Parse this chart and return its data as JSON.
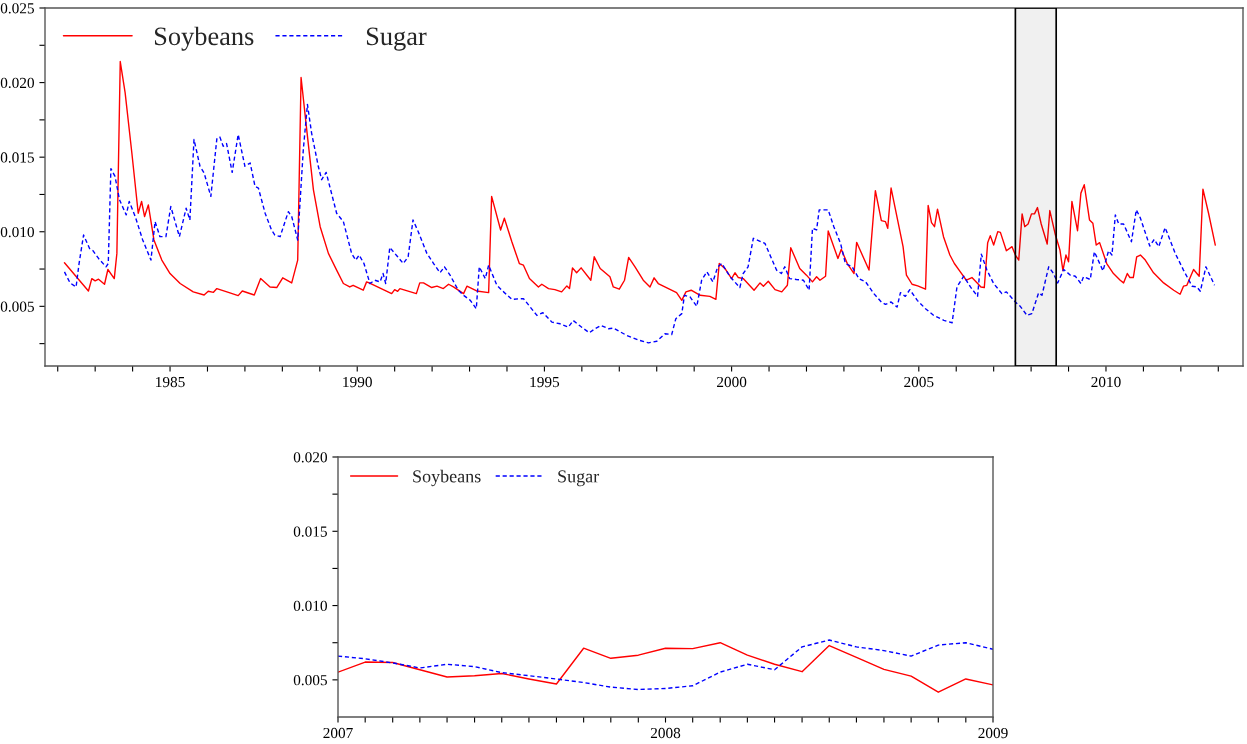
{
  "chart_data": [
    {
      "type": "line",
      "xlim": [
        1981.66,
        2013.66
      ],
      "ylim": [
        0.001,
        0.025
      ],
      "legend": "top left",
      "xticks": [
        {
          "value": 1982,
          "label": null
        },
        {
          "value": 1983,
          "label": null
        },
        {
          "value": 1984,
          "label": null
        },
        1985,
        {
          "value": 1986,
          "label": null
        },
        {
          "value": 1987,
          "label": null
        },
        {
          "value": 1988,
          "label": null
        },
        {
          "value": 1989,
          "label": null
        },
        1990,
        {
          "value": 1991,
          "label": null
        },
        {
          "value": 1992,
          "label": null
        },
        {
          "value": 1993,
          "label": null
        },
        {
          "value": 1994,
          "label": null
        },
        1995,
        {
          "value": 1996,
          "label": null
        },
        {
          "value": 1997,
          "label": null
        },
        {
          "value": 1998,
          "label": null
        },
        {
          "value": 1999,
          "label": null
        },
        2000,
        {
          "value": 2001,
          "label": null
        },
        {
          "value": 2002,
          "label": null
        },
        {
          "value": 2003,
          "label": null
        },
        {
          "value": 2004,
          "label": null
        },
        2005,
        {
          "value": 2006,
          "label": null
        },
        {
          "value": 2007,
          "label": null
        },
        {
          "value": 2008,
          "label": null
        },
        {
          "value": 2009,
          "label": null
        },
        2010,
        {
          "value": 2011,
          "label": null
        },
        {
          "value": 2012,
          "label": null
        },
        {
          "value": 2013,
          "label": null
        }
      ],
      "yticks": [
        {
          "value": 0.0025,
          "label": null
        },
        0.005,
        {
          "value": 0.0075,
          "label": null
        },
        {
          "value": 0.01,
          "label": "0.010"
        },
        {
          "value": 0.0125,
          "label": null
        },
        0.015,
        {
          "value": 0.0175,
          "label": null
        },
        {
          "value": 0.02,
          "label": "0.020"
        },
        {
          "value": 0.0225,
          "label": null
        },
        0.025
      ],
      "bands": [
        {
          "axis": "x",
          "from": 2007.58,
          "to": 2008.67,
          "color": "#000000"
        }
      ],
      "series": [
        {
          "name": "Soybeans",
          "color": "#ff0000",
          "line_style": "solid",
          "x": [
            1982.18,
            1982.82,
            1982.91,
            1983.0,
            1983.09,
            1983.25,
            1983.34,
            1983.51,
            1983.58,
            1983.67,
            1983.8,
            1983.98,
            1984.15,
            1984.24,
            1984.32,
            1984.42,
            1984.57,
            1984.78,
            1985.0,
            1985.27,
            1985.62,
            1985.91,
            1986.02,
            1986.16,
            1986.25,
            1986.6,
            1986.82,
            1986.93,
            1987.25,
            1987.42,
            1987.67,
            1987.85,
            1988.01,
            1988.25,
            1988.41,
            1988.5,
            1988.65,
            1988.83,
            1989.01,
            1989.23,
            1989.45,
            1989.63,
            1989.8,
            1989.89,
            1990.16,
            1990.25,
            1990.36,
            1990.92,
            1991.0,
            1991.08,
            1991.14,
            1991.58,
            1991.67,
            1991.77,
            1991.99,
            1992.13,
            1992.3,
            1992.44,
            1992.57,
            1992.84,
            1992.93,
            1993.19,
            1993.51,
            1993.59,
            1993.83,
            1993.93,
            1994.13,
            1994.33,
            1994.44,
            1994.6,
            1994.84,
            1994.93,
            1995.11,
            1995.28,
            1995.46,
            1995.6,
            1995.67,
            1995.75,
            1995.86,
            1995.98,
            1996.24,
            1996.33,
            1996.49,
            1996.75,
            1996.84,
            1997.0,
            1997.14,
            1997.25,
            1997.42,
            1997.64,
            1997.82,
            1997.93,
            1998.04,
            1998.53,
            1998.67,
            1998.78,
            1998.92,
            1999.16,
            1999.42,
            1999.58,
            1999.67,
            1999.82,
            2000.0,
            2000.09,
            2000.18,
            2000.31,
            2000.6,
            2000.76,
            2000.85,
            2000.98,
            2001.16,
            2001.34,
            2001.49,
            2001.58,
            2001.82,
            2002.0,
            2002.16,
            2002.27,
            2002.36,
            2002.51,
            2002.58,
            2002.84,
            2002.93,
            2003.09,
            2003.27,
            2003.34,
            2003.67,
            2003.84,
            2004.0,
            2004.11,
            2004.17,
            2004.26,
            2004.58,
            2004.67,
            2004.82,
            2004.97,
            2005.18,
            2005.25,
            2005.34,
            2005.42,
            2005.5,
            2005.66,
            2005.83,
            2005.95,
            2006.11,
            2006.27,
            2006.42,
            2006.56,
            2006.66,
            2006.75,
            2006.84,
            2006.91,
            2007.0,
            2007.11,
            2007.18,
            2007.34,
            2007.49,
            2007.58,
            2007.67,
            2007.76,
            2007.83,
            2007.92,
            2008.01,
            2008.09,
            2008.17,
            2008.27,
            2008.43,
            2008.5,
            2008.65,
            2008.77,
            2008.85,
            2008.93,
            2009.0,
            2009.09,
            2009.24,
            2009.33,
            2009.42,
            2009.56,
            2009.65,
            2009.74,
            2009.83,
            2010.02,
            2010.2,
            2010.38,
            2010.47,
            2010.57,
            2010.64,
            2010.73,
            2010.82,
            2010.92,
            2011.05,
            2011.27,
            2011.54,
            2011.81,
            2011.98,
            2012.07,
            2012.16,
            2012.34,
            2012.49,
            2012.59,
            2012.74,
            2012.92
          ],
          "values": [
            0.00792,
            0.00603,
            0.00686,
            0.00671,
            0.00682,
            0.00648,
            0.00747,
            0.00686,
            0.00855,
            0.02141,
            0.01933,
            0.01528,
            0.01124,
            0.01203,
            0.01102,
            0.0118,
            0.00945,
            0.0081,
            0.0072,
            0.00653,
            0.00597,
            0.00576,
            0.00601,
            0.00594,
            0.00619,
            0.0059,
            0.00572,
            0.00603,
            0.00576,
            0.00686,
            0.0063,
            0.00626,
            0.00691,
            0.00657,
            0.0081,
            0.02034,
            0.01686,
            0.01281,
            0.01034,
            0.00855,
            0.00743,
            0.00653,
            0.0063,
            0.00641,
            0.00608,
            0.00664,
            0.00653,
            0.00585,
            0.00612,
            0.00601,
            0.00619,
            0.00585,
            0.00657,
            0.00657,
            0.00626,
            0.00635,
            0.00619,
            0.00648,
            0.0063,
            0.00585,
            0.00635,
            0.00603,
            0.00592,
            0.01237,
            0.01012,
            0.01091,
            0.00933,
            0.00787,
            0.00776,
            0.00686,
            0.0063,
            0.00648,
            0.00619,
            0.00612,
            0.00597,
            0.00637,
            0.00619,
            0.00758,
            0.00725,
            0.00758,
            0.00675,
            0.00832,
            0.00754,
            0.00698,
            0.0063,
            0.00615,
            0.00675,
            0.00828,
            0.00765,
            0.00675,
            0.0063,
            0.00691,
            0.00653,
            0.00592,
            0.0054,
            0.00597,
            0.00608,
            0.00574,
            0.00567,
            0.00547,
            0.00787,
            0.00754,
            0.00686,
            0.00725,
            0.00693,
            0.00686,
            0.00608,
            0.00657,
            0.00635,
            0.00668,
            0.00612,
            0.00597,
            0.00641,
            0.00893,
            0.00754,
            0.00709,
            0.00664,
            0.00698,
            0.00675,
            0.00702,
            0.01005,
            0.00821,
            0.00882,
            0.00787,
            0.0072,
            0.00929,
            0.00743,
            0.01275,
            0.01075,
            0.01068,
            0.01023,
            0.01293,
            0.009,
            0.00709,
            0.00648,
            0.00637,
            0.00615,
            0.01176,
            0.01061,
            0.01034,
            0.01151,
            0.00967,
            0.00844,
            0.00787,
            0.00731,
            0.00675,
            0.00693,
            0.00657,
            0.0063,
            0.00626,
            0.00927,
            0.00974,
            0.00911,
            0.01001,
            0.00996,
            0.00873,
            0.009,
            0.00844,
            0.0081,
            0.0112,
            0.01034,
            0.01052,
            0.0112,
            0.0112,
            0.01162,
            0.01052,
            0.00918,
            0.01142,
            0.00978,
            0.00878,
            0.0074,
            0.00844,
            0.00799,
            0.01203,
            0.01007,
            0.01259,
            0.01315,
            0.01079,
            0.01057,
            0.00911,
            0.00927,
            0.00787,
            0.0072,
            0.00675,
            0.00657,
            0.0072,
            0.00693,
            0.00693,
            0.00832,
            0.00844,
            0.0081,
            0.00725,
            0.00657,
            0.00608,
            0.00581,
            0.00635,
            0.00641,
            0.00747,
            0.00702,
            0.01286,
            0.01124,
            0.00911
          ]
        },
        {
          "name": "Sugar",
          "color": "#0000ff",
          "line_style": "dashed",
          "x": [
            1982.18,
            1982.33,
            1982.49,
            1982.57,
            1982.69,
            1982.85,
            1982.94,
            1983.09,
            1983.29,
            1983.35,
            1983.42,
            1983.53,
            1983.65,
            1983.83,
            1983.91,
            1984.07,
            1984.27,
            1984.49,
            1984.6,
            1984.73,
            1984.89,
            1985.02,
            1985.25,
            1985.43,
            1985.53,
            1985.64,
            1985.8,
            1985.91,
            1986.09,
            1986.25,
            1986.33,
            1986.42,
            1986.51,
            1986.66,
            1986.82,
            1987.0,
            1987.14,
            1987.27,
            1987.36,
            1987.54,
            1987.71,
            1987.8,
            1987.94,
            1988.16,
            1988.25,
            1988.41,
            1988.56,
            1988.67,
            1988.78,
            1988.96,
            1989.05,
            1989.17,
            1989.45,
            1989.63,
            1989.85,
            1989.96,
            1990.05,
            1990.18,
            1990.34,
            1990.47,
            1990.61,
            1990.69,
            1990.76,
            1990.87,
            1991.08,
            1991.23,
            1991.36,
            1991.49,
            1991.63,
            1991.86,
            1992.04,
            1992.21,
            1992.33,
            1992.48,
            1992.7,
            1992.84,
            1993.02,
            1993.18,
            1993.26,
            1993.42,
            1993.51,
            1993.73,
            1993.91,
            1994.13,
            1994.44,
            1994.8,
            1994.96,
            1995.2,
            1995.42,
            1995.64,
            1995.77,
            1995.99,
            1996.2,
            1996.35,
            1996.51,
            1996.71,
            1996.84,
            1997.2,
            1997.55,
            1997.78,
            1998.0,
            1998.22,
            1998.4,
            1998.51,
            1998.67,
            1998.74,
            1998.89,
            1999.07,
            1999.2,
            1999.34,
            1999.5,
            1999.63,
            1999.74,
            1999.96,
            2000.22,
            2000.31,
            2000.44,
            2000.58,
            2000.89,
            2001.2,
            2001.33,
            2001.42,
            2001.55,
            2001.73,
            2001.92,
            2002.07,
            2002.16,
            2002.27,
            2002.34,
            2002.58,
            2002.73,
            2002.91,
            2003.04,
            2003.22,
            2003.4,
            2003.58,
            2003.8,
            2004.0,
            2004.11,
            2004.26,
            2004.42,
            2004.51,
            2004.64,
            2004.76,
            2004.96,
            2005.18,
            2005.4,
            2005.67,
            2005.89,
            2006.02,
            2006.2,
            2006.38,
            2006.57,
            2006.67,
            2006.82,
            2007.0,
            2007.22,
            2007.34,
            2007.58,
            2007.71,
            2007.89,
            2008.02,
            2008.2,
            2008.29,
            2008.47,
            2008.6,
            2008.71,
            2008.87,
            2009.05,
            2009.18,
            2009.33,
            2009.4,
            2009.58,
            2009.69,
            2009.92,
            2010.07,
            2010.16,
            2010.25,
            2010.34,
            2010.47,
            2010.68,
            2010.81,
            2010.92,
            2011.17,
            2011.29,
            2011.41,
            2011.58,
            2011.85,
            2012.07,
            2012.3,
            2012.43,
            2012.52,
            2012.67,
            2012.9
          ],
          "values": [
            0.00731,
            0.00657,
            0.0063,
            0.00787,
            0.00978,
            0.00888,
            0.00873,
            0.00821,
            0.00765,
            0.00787,
            0.01423,
            0.01371,
            0.01214,
            0.01113,
            0.01203,
            0.01102,
            0.00945,
            0.0081,
            0.01068,
            0.00967,
            0.00967,
            0.01169,
            0.00967,
            0.01158,
            0.01079,
            0.01618,
            0.01439,
            0.01394,
            0.01237,
            0.01623,
            0.01636,
            0.01573,
            0.01591,
            0.01398,
            0.01652,
            0.01439,
            0.01461,
            0.01304,
            0.01293,
            0.01124,
            0.01012,
            0.00978,
            0.00967,
            0.01135,
            0.01102,
            0.00945,
            0.01551,
            0.01854,
            0.01663,
            0.01439,
            0.01349,
            0.01398,
            0.01124,
            0.01068,
            0.00855,
            0.0081,
            0.00844,
            0.00787,
            0.00653,
            0.00675,
            0.00664,
            0.0072,
            0.00653,
            0.00895,
            0.00832,
            0.00787,
            0.00832,
            0.01079,
            0.01,
            0.00855,
            0.00787,
            0.00725,
            0.00765,
            0.00709,
            0.00608,
            0.00574,
            0.0054,
            0.00484,
            0.00765,
            0.00686,
            0.00776,
            0.00641,
            0.00597,
            0.00547,
            0.00552,
            0.00439,
            0.00457,
            0.00394,
            0.00383,
            0.00361,
            0.00405,
            0.00361,
            0.00323,
            0.0035,
            0.00372,
            0.0035,
            0.00354,
            0.00305,
            0.00271,
            0.00255,
            0.00266,
            0.00316,
            0.00311,
            0.00417,
            0.00451,
            0.00574,
            0.00563,
            0.005,
            0.00675,
            0.00731,
            0.00664,
            0.00765,
            0.00787,
            0.00698,
            0.00626,
            0.0072,
            0.00765,
            0.00956,
            0.00922,
            0.00743,
            0.0072,
            0.00765,
            0.00686,
            0.0068,
            0.00675,
            0.00608,
            0.01023,
            0.01012,
            0.01147,
            0.01147,
            0.01034,
            0.00922,
            0.00787,
            0.00765,
            0.00686,
            0.00664,
            0.00585,
            0.00529,
            0.00513,
            0.00529,
            0.00495,
            0.00592,
            0.00567,
            0.00612,
            0.0054,
            0.00484,
            0.00439,
            0.00406,
            0.0039,
            0.0063,
            0.00702,
            0.0063,
            0.00567,
            0.0085,
            0.00743,
            0.00653,
            0.00585,
            0.00597,
            0.00529,
            0.005,
            0.00439,
            0.00451,
            0.0059,
            0.00574,
            0.00765,
            0.0072,
            0.00657,
            0.00747,
            0.00709,
            0.00702,
            0.00653,
            0.00698,
            0.0068,
            0.00866,
            0.00738,
            0.00873,
            0.00844,
            0.01113,
            0.01052,
            0.01052,
            0.00933,
            0.01147,
            0.01091,
            0.00904,
            0.00949,
            0.009,
            0.01028,
            0.00855,
            0.00743,
            0.00635,
            0.0063,
            0.00601,
            0.00765,
            0.00641
          ]
        }
      ]
    },
    {
      "type": "line",
      "xlim": [
        2007,
        2009
      ],
      "ylim": [
        0.0025,
        0.02
      ],
      "legend": "top left",
      "xticks": [
        2007,
        {
          "value": 2007.083,
          "label": null
        },
        {
          "value": 2007.167,
          "label": null
        },
        {
          "value": 2007.25,
          "label": null
        },
        {
          "value": 2007.333,
          "label": null
        },
        {
          "value": 2007.417,
          "label": null
        },
        {
          "value": 2007.5,
          "label": null
        },
        {
          "value": 2007.583,
          "label": null
        },
        {
          "value": 2007.667,
          "label": null
        },
        {
          "value": 2007.75,
          "label": null
        },
        {
          "value": 2007.833,
          "label": null
        },
        {
          "value": 2007.917,
          "label": null
        },
        2008,
        {
          "value": 2008.083,
          "label": null
        },
        {
          "value": 2008.167,
          "label": null
        },
        {
          "value": 2008.25,
          "label": null
        },
        {
          "value": 2008.333,
          "label": null
        },
        {
          "value": 2008.417,
          "label": null
        },
        {
          "value": 2008.5,
          "label": null
        },
        {
          "value": 2008.583,
          "label": null
        },
        {
          "value": 2008.667,
          "label": null
        },
        {
          "value": 2008.75,
          "label": null
        },
        {
          "value": 2008.833,
          "label": null
        },
        {
          "value": 2008.917,
          "label": null
        },
        2009
      ],
      "yticks": [
        0.005,
        {
          "value": 0.0075,
          "label": null
        },
        {
          "value": 0.01,
          "label": "0.010"
        },
        {
          "value": 0.0125,
          "label": null
        },
        0.015,
        {
          "value": 0.0175,
          "label": null
        },
        {
          "value": 0.02,
          "label": "0.020"
        }
      ],
      "series": [
        {
          "name": "Soybeans",
          "color": "#ff0000",
          "line_style": "solid",
          "x": [
            2007.0,
            2007.083,
            2007.167,
            2007.25,
            2007.333,
            2007.417,
            2007.5,
            2007.583,
            2007.667,
            2007.75,
            2007.833,
            2007.917,
            2008.0,
            2008.083,
            2008.167,
            2008.25,
            2008.333,
            2008.417,
            2008.5,
            2008.583,
            2008.667,
            2008.75,
            2008.833,
            2008.917,
            2009.0
          ],
          "values": [
            0.00552,
            0.0062,
            0.00617,
            0.00568,
            0.00519,
            0.00528,
            0.00543,
            0.00506,
            0.00472,
            0.00713,
            0.00645,
            0.00666,
            0.00713,
            0.0071,
            0.0075,
            0.00666,
            0.00605,
            0.00555,
            0.00731,
            0.00651,
            0.00571,
            0.00525,
            0.00417,
            0.00506,
            0.00466
          ]
        },
        {
          "name": "Sugar",
          "color": "#0000ff",
          "line_style": "dashed",
          "x": [
            2007.0,
            2007.083,
            2007.167,
            2007.25,
            2007.333,
            2007.417,
            2007.5,
            2007.583,
            2007.667,
            2007.75,
            2007.833,
            2007.917,
            2008.0,
            2008.083,
            2008.167,
            2008.25,
            2008.333,
            2008.417,
            2008.5,
            2008.583,
            2008.667,
            2008.75,
            2008.833,
            2008.917,
            2009.0
          ],
          "values": [
            0.0066,
            0.00642,
            0.00614,
            0.0058,
            0.00605,
            0.00589,
            0.00549,
            0.00528,
            0.00506,
            0.00482,
            0.00451,
            0.00435,
            0.00442,
            0.0046,
            0.00552,
            0.00605,
            0.00568,
            0.00722,
            0.00768,
            0.00722,
            0.00697,
            0.0066,
            0.00734,
            0.0075,
            0.00706
          ]
        }
      ]
    }
  ]
}
